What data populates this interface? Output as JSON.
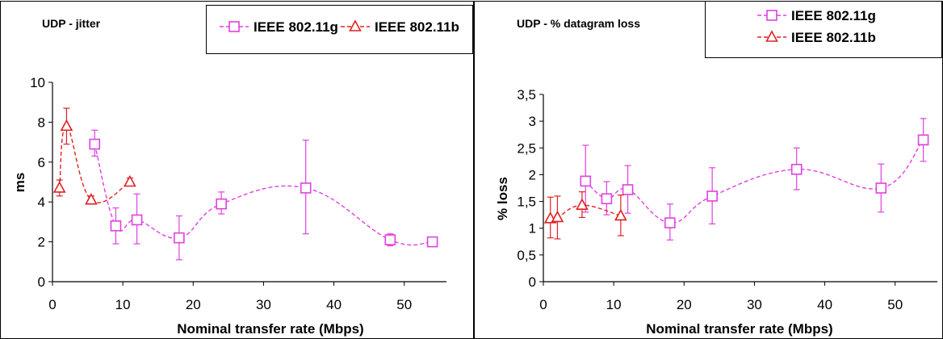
{
  "chart_data": [
    {
      "type": "line",
      "title": "UDP - jitter",
      "xlabel": "Nominal transfer rate (Mbps)",
      "ylabel": "ms",
      "xlim": [
        0,
        56
      ],
      "ylim": [
        0,
        10
      ],
      "xticks": [
        0,
        10,
        20,
        30,
        40,
        50
      ],
      "yticks": [
        0,
        2,
        4,
        6,
        8,
        10
      ],
      "xtick_labels": [
        "0",
        "10",
        "20",
        "30",
        "40",
        "50"
      ],
      "ytick_labels": [
        "0",
        "2",
        "4",
        "6",
        "8",
        "10"
      ],
      "legend_position": "top-right",
      "series": [
        {
          "name": "IEEE 802.11g",
          "color": "#e040e0",
          "marker": "square",
          "x": [
            6,
            9,
            12,
            18,
            24,
            36,
            48,
            54
          ],
          "y": [
            6.9,
            2.8,
            3.1,
            2.2,
            3.9,
            4.7,
            2.1,
            2.0
          ],
          "err_low": [
            6.3,
            1.9,
            1.9,
            1.1,
            3.4,
            2.4,
            1.8,
            1.9
          ],
          "err_high": [
            7.6,
            3.7,
            4.4,
            3.3,
            4.5,
            7.1,
            2.4,
            2.2
          ]
        },
        {
          "name": "IEEE 802.11b",
          "color": "#e02020",
          "marker": "triangle",
          "x": [
            1,
            2,
            5.5,
            11
          ],
          "y": [
            4.7,
            7.8,
            4.1,
            5.0
          ],
          "err_low": [
            4.3,
            6.9,
            3.9,
            4.8
          ],
          "err_high": [
            5.1,
            8.7,
            4.3,
            5.2
          ]
        }
      ]
    },
    {
      "type": "line",
      "title": "UDP - % datagram loss",
      "xlabel": "Nominal transfer rate (Mbps)",
      "ylabel": "% loss",
      "xlim": [
        0,
        56
      ],
      "ylim": [
        0,
        3.5
      ],
      "xticks": [
        0,
        10,
        20,
        30,
        40,
        50
      ],
      "yticks": [
        0,
        0.5,
        1,
        1.5,
        2,
        2.5,
        3,
        3.5
      ],
      "xtick_labels": [
        "0",
        "10",
        "20",
        "30",
        "40",
        "50"
      ],
      "ytick_labels": [
        "0",
        "0,5",
        "1",
        "1,5",
        "2",
        "2,5",
        "3",
        "3,5"
      ],
      "legend_position": "top-right",
      "series": [
        {
          "name": "IEEE 802.11g",
          "color": "#e040e0",
          "marker": "square",
          "x": [
            6,
            9,
            12,
            18,
            24,
            36,
            48,
            54
          ],
          "y": [
            1.88,
            1.55,
            1.72,
            1.1,
            1.6,
            2.1,
            1.75,
            2.65
          ],
          "err_low": [
            1.3,
            1.25,
            1.28,
            0.78,
            1.08,
            1.72,
            1.3,
            2.25
          ],
          "err_high": [
            2.55,
            1.87,
            2.17,
            1.45,
            2.13,
            2.5,
            2.2,
            3.05
          ]
        },
        {
          "name": "IEEE 802.11b",
          "color": "#e02020",
          "marker": "triangle",
          "x": [
            1,
            2,
            5.5,
            11
          ],
          "y": [
            1.18,
            1.2,
            1.43,
            1.23
          ],
          "err_low": [
            0.82,
            0.8,
            1.2,
            0.86
          ],
          "err_high": [
            1.58,
            1.6,
            1.68,
            1.62
          ]
        }
      ]
    }
  ]
}
